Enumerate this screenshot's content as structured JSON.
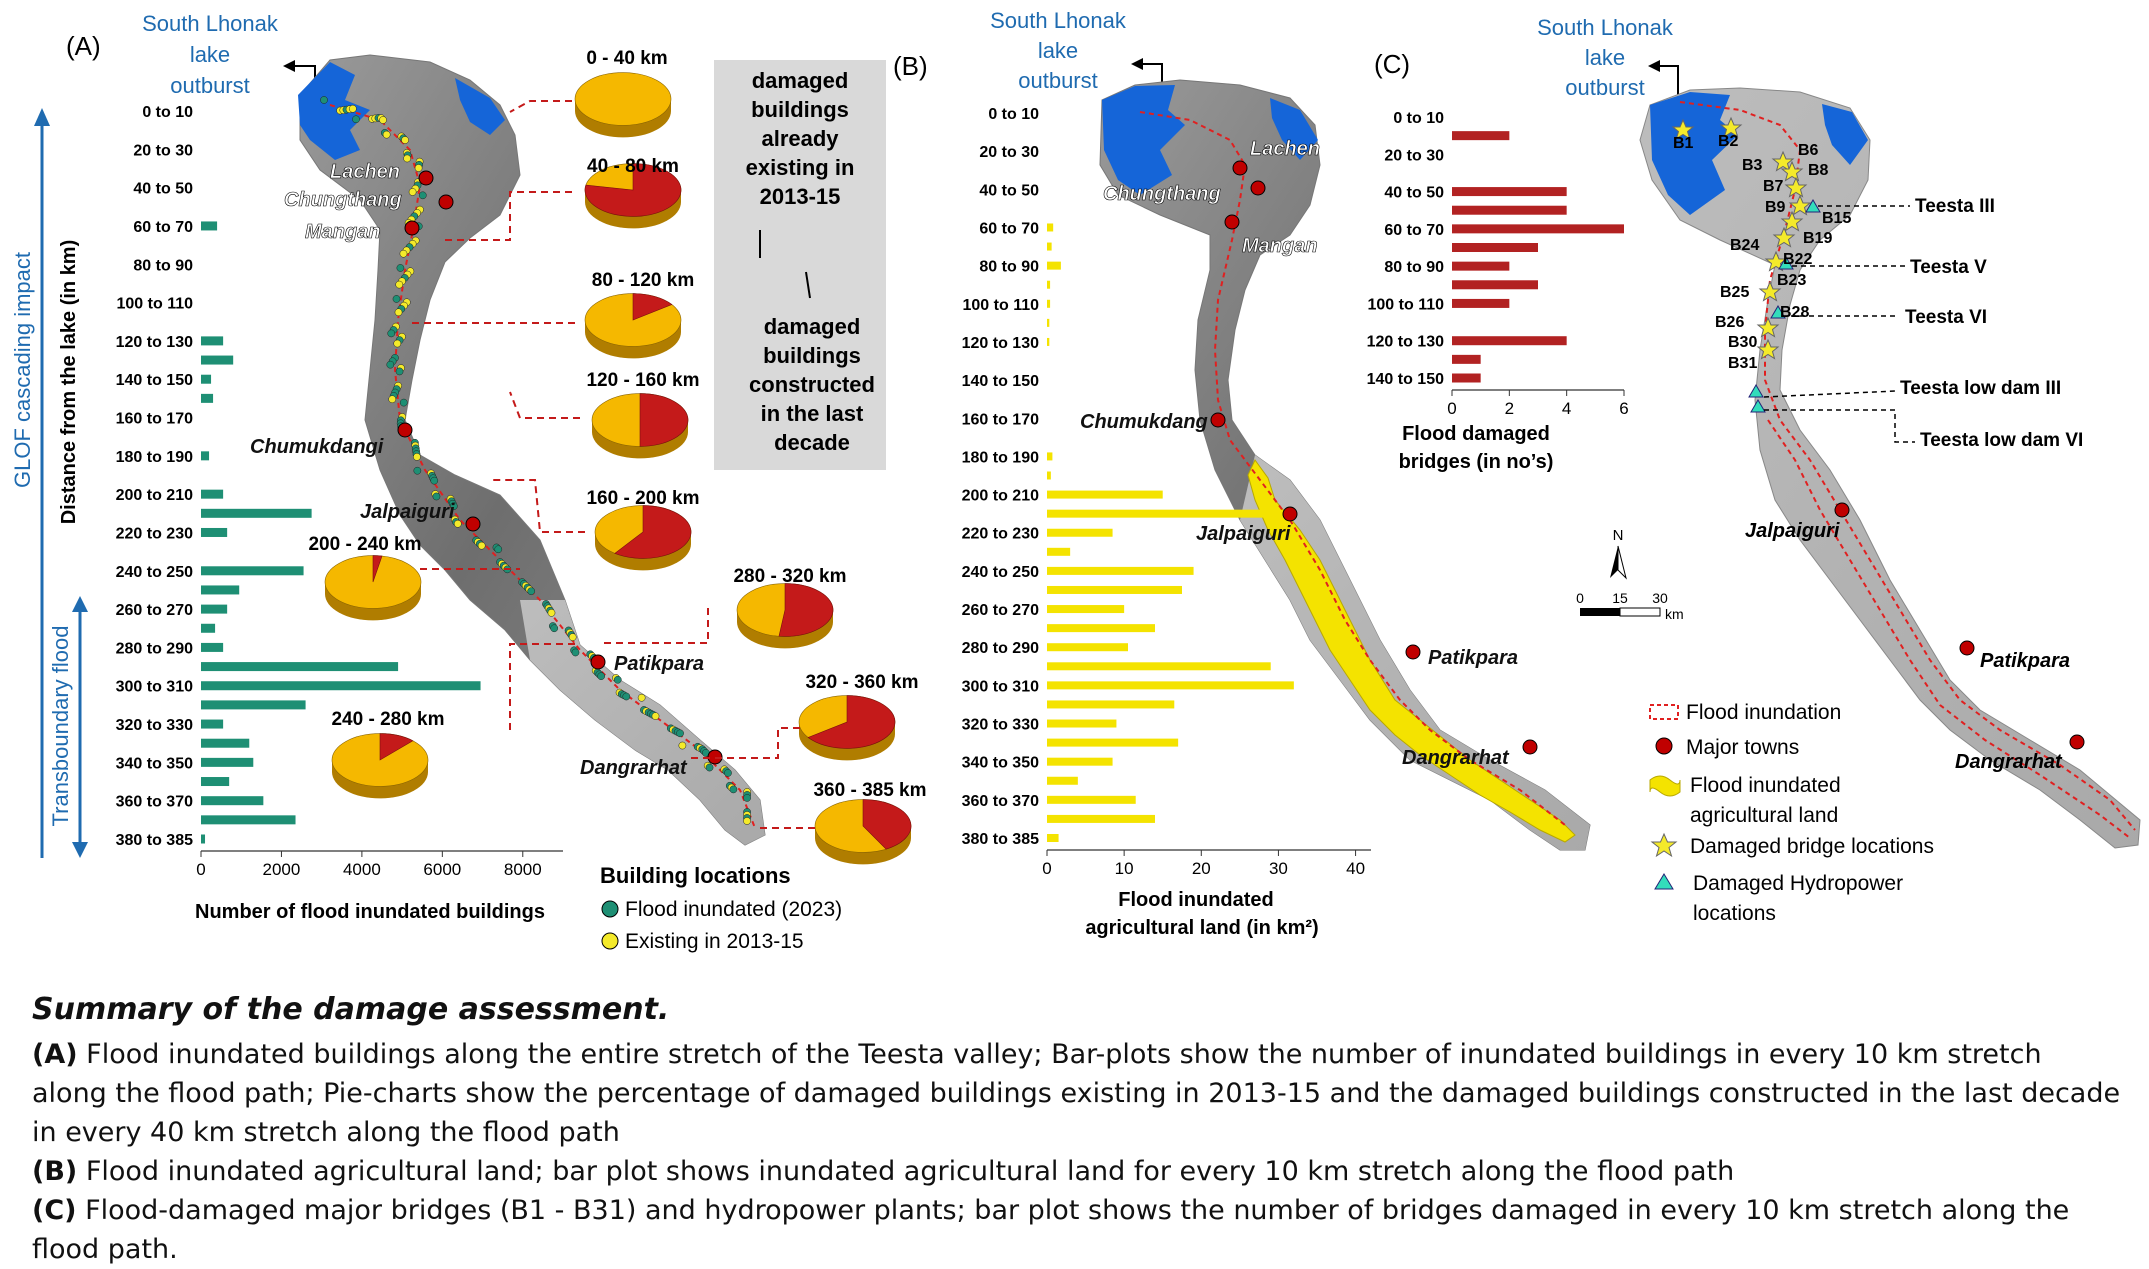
{
  "labels": {
    "panel_a": "(A)",
    "panel_b": "(B)",
    "panel_c": "(C)",
    "lake_line1": "South Lhonak",
    "lake_line2": "lake",
    "lake_line3": "outburst",
    "ylabel_a": "Distance from the lake (in km)",
    "side_glof": "GLOF cascading impact",
    "side_trans": "Transboundary flood",
    "legend_a_title": "Building locations",
    "legend_a_1": "Flood inundated (2023)",
    "legend_a_2": "Existing in 2013-15",
    "box_existing": [
      "damaged",
      "buildings",
      "already",
      "existing in",
      "2013-15"
    ],
    "box_new": [
      "damaged",
      "buildings",
      "constructed",
      "in the last",
      "decade"
    ],
    "north": "N",
    "scale_ticks": [
      "0",
      "15",
      "30"
    ],
    "scale_unit": "km",
    "legend_c": [
      "Flood inundation",
      "Major towns",
      "Flood inundated",
      "agricultural land",
      "Damaged bridge locations",
      "Damaged Hydropower",
      "locations"
    ]
  },
  "towns": {
    "a": [
      "Lachen",
      "Chungthang",
      "Mangan",
      "Chumukdangi",
      "Jalpaiguri",
      "Patikpara",
      "Dangrarhat"
    ],
    "b": [
      "Lachen",
      "Chungthang",
      "Mangan",
      "Chumukdang",
      "Jalpaiguri",
      "Patikpara",
      "Dangrarhat"
    ],
    "c": [
      "Jalpaiguri",
      "Patikpara",
      "Dangrarhat"
    ]
  },
  "bridges": [
    "B1",
    "B2",
    "B3",
    "B6",
    "B7",
    "B8",
    "B9",
    "B15",
    "B19",
    "B24",
    "B22",
    "B23",
    "B25",
    "B28",
    "B26",
    "B30",
    "B31"
  ],
  "hydropower": [
    "Teesta III",
    "Teesta V",
    "Teesta VI",
    "Teesta low dam III",
    "Teesta low dam VI"
  ],
  "chart_data": [
    {
      "type": "bar",
      "orientation": "horizontal",
      "categories": [
        "0 to 10",
        "10 to 20",
        "20 to 30",
        "30 to 40",
        "40 to 50",
        "50 to 60",
        "60 to 70",
        "70 to 80",
        "80 to 90",
        "90 to 100",
        "100 to 110",
        "110 to 120",
        "120 to 130",
        "130 to 140",
        "140 to 150",
        "150 to 160",
        "160 to 170",
        "170 to 180",
        "180 to 190",
        "190 to 200",
        "200 to 210",
        "210 to 220",
        "220 to 230",
        "230 to 240",
        "240 to 250",
        "250 to 260",
        "260 to 270",
        "270 to 280",
        "280 to 290",
        "290 to 300",
        "300 to 310",
        "310 to 320",
        "320 to 330",
        "330 to 340",
        "340 to 350",
        "350 to 360",
        "360 to 370",
        "370 to 380",
        "380 to 385"
      ],
      "tick_labels": [
        "0 to 10",
        "20 to 30",
        "40 to 50",
        "60 to 70",
        "80 to 90",
        "100 to 110",
        "120 to 130",
        "140 to 150",
        "160 to 170",
        "180 to 190",
        "200 to 210",
        "220 to 230",
        "240 to 250",
        "260 to 270",
        "280 to 290",
        "300 to 310",
        "320 to 330",
        "340 to 350",
        "360 to 370",
        "380 to 385"
      ],
      "values": [
        0,
        0,
        0,
        0,
        0,
        0,
        400,
        0,
        0,
        0,
        0,
        0,
        550,
        800,
        250,
        300,
        0,
        0,
        200,
        0,
        550,
        2750,
        650,
        0,
        2550,
        950,
        650,
        350,
        550,
        4900,
        6950,
        2600,
        550,
        1200,
        1300,
        700,
        1550,
        2350,
        100
      ],
      "xlabel": "Number of flood inundated buildings",
      "xticks": [
        0,
        2000,
        4000,
        6000,
        8000
      ],
      "xlim": [
        0,
        9000
      ],
      "color": "#1e8f74"
    },
    {
      "type": "pie",
      "series_names": [
        "damaged buildings already existing in 2013-15",
        "damaged buildings constructed in the last decade"
      ],
      "colors": [
        "#f5b800",
        "#c41a1a"
      ],
      "slices": [
        {
          "label": "0 - 40 km",
          "values": [
            100,
            0
          ]
        },
        {
          "label": "40 - 80 km",
          "values": [
            22,
            78
          ]
        },
        {
          "label": "80 - 120 km",
          "values": [
            85,
            15
          ]
        },
        {
          "label": "120 - 160 km",
          "values": [
            50,
            50
          ]
        },
        {
          "label": "160 - 200 km",
          "values": [
            40,
            60
          ]
        },
        {
          "label": "200 - 240 km",
          "values": [
            97,
            3
          ]
        },
        {
          "label": "240 - 280 km",
          "values": [
            88,
            12
          ]
        },
        {
          "label": "280 - 320 km",
          "values": [
            48,
            52
          ]
        },
        {
          "label": "320 - 360 km",
          "values": [
            35,
            65
          ]
        },
        {
          "label": "360 - 385 km",
          "values": [
            58,
            42
          ]
        },
        {
          "label": "",
          "values": [
            50,
            50
          ]
        }
      ]
    },
    {
      "type": "bar",
      "orientation": "horizontal",
      "categories": [
        "0 to 10",
        "10 to 20",
        "20 to 30",
        "30 to 40",
        "40 to 50",
        "50 to 60",
        "60 to 70",
        "70 to 80",
        "80 to 90",
        "90 to 100",
        "100 to 110",
        "110 to 120",
        "120 to 130",
        "130 to 140",
        "140 to 150",
        "150 to 160",
        "160 to 170",
        "170 to 180",
        "180 to 190",
        "190 to 200",
        "200 to 210",
        "210 to 220",
        "220 to 230",
        "230 to 240",
        "240 to 250",
        "250 to 260",
        "260 to 270",
        "270 to 280",
        "280 to 290",
        "290 to 300",
        "300 to 310",
        "310 to 320",
        "320 to 330",
        "330 to 340",
        "340 to 350",
        "350 to 360",
        "360 to 370",
        "370 to 380",
        "380 to 385"
      ],
      "tick_labels": [
        "0 to 10",
        "20 to 30",
        "40 to 50",
        "60 to 70",
        "80 to 90",
        "100 to 110",
        "120 to 130",
        "140 to 150",
        "160 to 170",
        "180 to 190",
        "200 to 210",
        "220 to 230",
        "240 to 250",
        "260 to 270",
        "280 to 290",
        "300 to 310",
        "320 to 330",
        "340 to 350",
        "360 to 370",
        "380 to 385"
      ],
      "values": [
        0,
        0,
        0,
        0,
        0,
        0,
        0.8,
        0.6,
        1.8,
        0.4,
        0.4,
        0.3,
        0.3,
        0,
        0,
        0,
        0,
        0,
        0.7,
        0.5,
        15,
        28.5,
        8.5,
        3,
        19,
        17.5,
        10,
        14,
        10.5,
        29,
        32,
        16.5,
        9,
        17,
        8.5,
        4,
        11.5,
        14,
        1.5
      ],
      "xlabel": "Flood inundated agricultural land (in km²)",
      "xlabel_lines": [
        "Flood inundated",
        "agricultural land (in km²)"
      ],
      "xticks": [
        0,
        10,
        20,
        30,
        40
      ],
      "xlim": [
        0,
        42
      ],
      "color": "#f4e300"
    },
    {
      "type": "bar",
      "orientation": "horizontal",
      "categories": [
        "0 to 10",
        "10 to 20",
        "20 to 30",
        "30 to 40",
        "40 to 50",
        "50 to 60",
        "60 to 70",
        "70 to 80",
        "80 to 90",
        "90 to 100",
        "100 to 110",
        "110 to 120",
        "120 to 130",
        "130 to 140",
        "140 to 150"
      ],
      "tick_labels": [
        "0 to 10",
        "20 to 30",
        "40 to 50",
        "60 to 70",
        "80 to 90",
        "100 to 110",
        "120 to 130",
        "140 to 150"
      ],
      "values": [
        0,
        2,
        0,
        0,
        4,
        4,
        6,
        3,
        2,
        3,
        2,
        0,
        4,
        1,
        1
      ],
      "xlabel": "Flood damaged bridges (in no's)",
      "xlabel_lines": [
        "Flood damaged",
        "bridges (in no’s)"
      ],
      "xticks": [
        0,
        2,
        4,
        6
      ],
      "xlim": [
        0,
        6
      ],
      "color": "#b22222"
    }
  ],
  "caption": {
    "title": "Summary of the damage assessment.",
    "a_tag": "(A)",
    "a_text": " Flood inundated buildings along the entire stretch of the Teesta valley; Bar-plots show the number of inundated buildings in every 10 km stretch along the flood path; Pie-charts show the percentage of damaged buildings existing in 2013-15 and the damaged buildings constructed in the last decade in every 40 km stretch along the flood path",
    "b_tag": "(B)",
    "b_text": " Flood inundated agricultural land; bar plot shows inundated agricultural land for every 10 km stretch along the flood path",
    "c_tag": "(C)",
    "c_text": " Flood-damaged major bridges (B1 - B31) and hydropower plants; bar plot shows the number of bridges damaged in every 10 km stretch along the flood path."
  }
}
